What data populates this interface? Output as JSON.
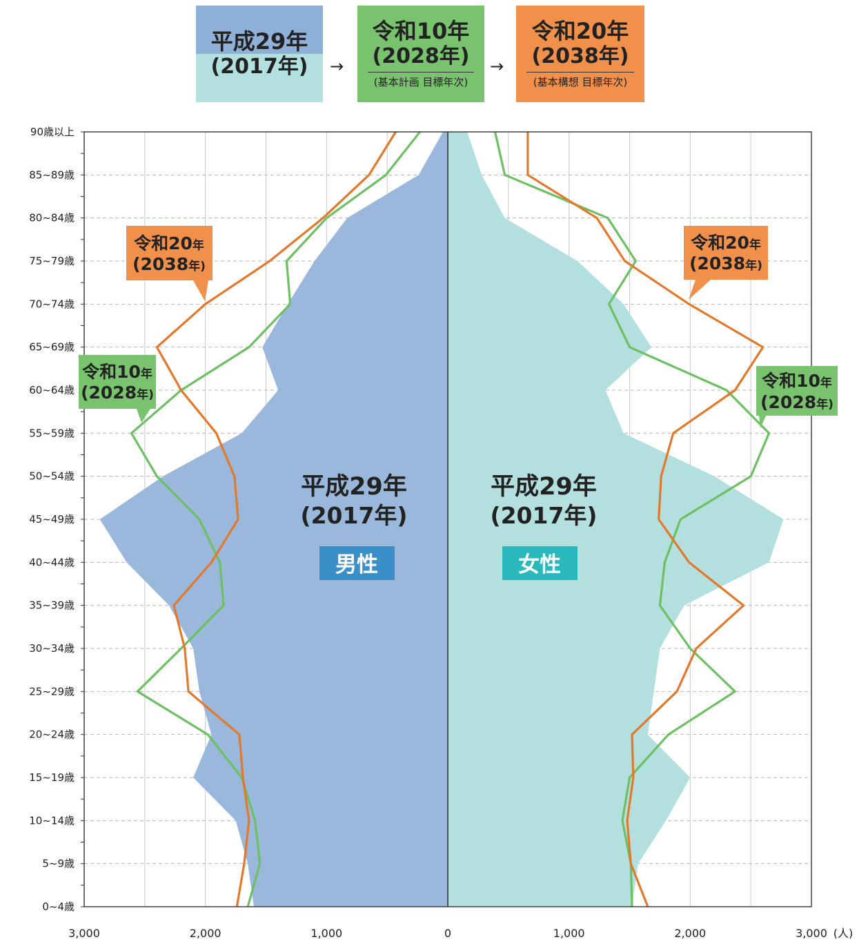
{
  "legend": {
    "items": [
      {
        "line1": "平成29年",
        "line2": "(2017年)",
        "note": ""
      },
      {
        "line1": "令和10年",
        "line2": "(2028年)",
        "note": "(基本計画 目標年次)"
      },
      {
        "line1": "令和20年",
        "line2": "(2038年)",
        "note": "(基本構想 目標年次)"
      }
    ],
    "arrow": "→"
  },
  "colors": {
    "male_fill": "#99b8dc",
    "female_fill": "#b3e0de",
    "line_2028": "#6cc062",
    "line_2038": "#e3782a",
    "male_badge": "#3b8fc8",
    "female_badge": "#29b8bc",
    "callout_2028": "#79c36e",
    "callout_2038": "#f0904b"
  },
  "center_labels": {
    "male": {
      "line1": "平成29年",
      "line2": "(2017年)",
      "badge": "男性"
    },
    "female": {
      "line1": "平成29年",
      "line2": "(2017年)",
      "badge": "女性"
    }
  },
  "callouts": {
    "left_2038": {
      "main": "令和20",
      "small": "年",
      "sub": "(2038",
      "sub_small": "年)"
    },
    "left_2028": {
      "main": "令和10",
      "small": "年",
      "sub": "(2028",
      "sub_small": "年)"
    },
    "right_2038": {
      "main": "令和20",
      "small": "年",
      "sub": "(2038",
      "sub_small": "年)"
    },
    "right_2028": {
      "main": "令和10",
      "small": "年",
      "sub": "(2028",
      "sub_small": "年)"
    }
  },
  "chart_data": {
    "type": "area",
    "title": "",
    "xlabel": "(人)",
    "x_range": [
      -3000,
      3000
    ],
    "x_ticks": [
      "3,000",
      "2,000",
      "1,000",
      "0",
      "1,000",
      "2,000",
      "3,000"
    ],
    "grid": true,
    "categories": [
      "0~4歳",
      "5~9歳",
      "10~14歳",
      "15~19歳",
      "20~24歳",
      "25~29歳",
      "30~34歳",
      "35~39歳",
      "40~44歳",
      "45~49歳",
      "50~54歳",
      "55~59歳",
      "60~64歳",
      "65~69歳",
      "70~74歳",
      "75~79歳",
      "80~84歳",
      "85~89歳",
      "90歳以上"
    ],
    "series": [
      {
        "name": "平成29年(2017年) 男性",
        "kind": "area",
        "side": "male",
        "values": [
          1600,
          1650,
          1750,
          2100,
          1950,
          2050,
          2100,
          2300,
          2650,
          2870,
          2350,
          1700,
          1400,
          1530,
          1320,
          1100,
          830,
          240,
          40
        ]
      },
      {
        "name": "平成29年(2017年) 女性",
        "kind": "area",
        "side": "female",
        "values": [
          1520,
          1570,
          1800,
          2000,
          1650,
          1700,
          1750,
          1950,
          2650,
          2770,
          2200,
          1450,
          1300,
          1680,
          1450,
          1070,
          470,
          280,
          160
        ]
      },
      {
        "name": "令和10年(2028年) 男性",
        "kind": "line",
        "side": "male",
        "values": [
          1650,
          1550,
          1590,
          1700,
          1980,
          2560,
          2200,
          1850,
          1880,
          2050,
          2400,
          2610,
          2200,
          1640,
          1300,
          1330,
          1000,
          510,
          230
        ]
      },
      {
        "name": "令和10年(2028年) 女性",
        "kind": "line",
        "side": "female",
        "values": [
          1520,
          1510,
          1440,
          1500,
          1820,
          2370,
          2000,
          1750,
          1790,
          1920,
          2500,
          2650,
          2300,
          1500,
          1330,
          1550,
          1320,
          470,
          390
        ]
      },
      {
        "name": "令和20年(2038年) 男性",
        "kind": "line",
        "side": "male",
        "values": [
          1740,
          1680,
          1640,
          1690,
          1720,
          2140,
          2170,
          2260,
          1950,
          1730,
          1760,
          1910,
          2200,
          2400,
          2000,
          1470,
          1030,
          650,
          430
        ]
      },
      {
        "name": "令和20年(2038年) 女性",
        "kind": "line",
        "side": "female",
        "values": [
          1650,
          1510,
          1480,
          1530,
          1520,
          1890,
          2050,
          2440,
          1990,
          1740,
          1760,
          1860,
          2370,
          2600,
          1990,
          1460,
          1230,
          660,
          660
        ]
      }
    ]
  }
}
